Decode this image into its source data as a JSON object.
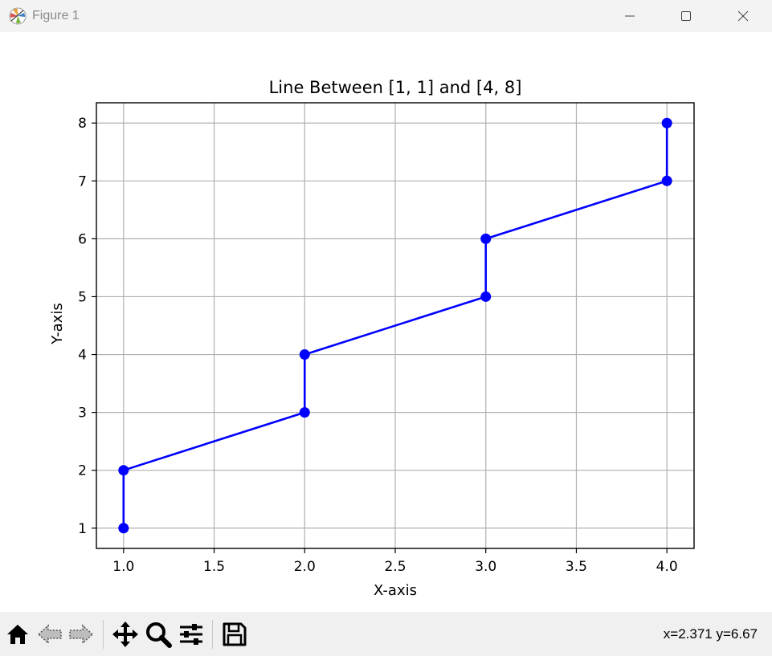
{
  "window": {
    "title": "Figure 1",
    "app_icon": "matplotlib-icon",
    "controls": [
      "minimize-icon",
      "maximize-icon",
      "close-icon"
    ]
  },
  "chart_data": {
    "type": "line",
    "title": "Line Between [1, 1] and [4, 8]",
    "xlabel": "X-axis",
    "ylabel": "Y-axis",
    "x": [
      1,
      1,
      2,
      2,
      3,
      3,
      4,
      4
    ],
    "y": [
      1,
      2,
      3,
      4,
      5,
      6,
      7,
      8
    ],
    "xlim": [
      0.85,
      4.15
    ],
    "ylim": [
      0.65,
      8.35
    ],
    "xticks": [
      1.0,
      1.5,
      2.0,
      2.5,
      3.0,
      3.5,
      4.0
    ],
    "xtick_labels": [
      "1.0",
      "1.5",
      "2.0",
      "2.5",
      "3.0",
      "3.5",
      "4.0"
    ],
    "yticks": [
      1,
      2,
      3,
      4,
      5,
      6,
      7,
      8
    ],
    "ytick_labels": [
      "1",
      "2",
      "3",
      "4",
      "5",
      "6",
      "7",
      "8"
    ],
    "grid": true,
    "line_color": "#0000ff",
    "marker": "circle"
  },
  "toolbar": {
    "buttons": [
      "home-icon",
      "back-icon",
      "forward-icon",
      "pan-icon",
      "zoom-icon",
      "configure-subplots-icon",
      "save-icon"
    ],
    "coords_text": "x=2.371 y=6.67"
  }
}
